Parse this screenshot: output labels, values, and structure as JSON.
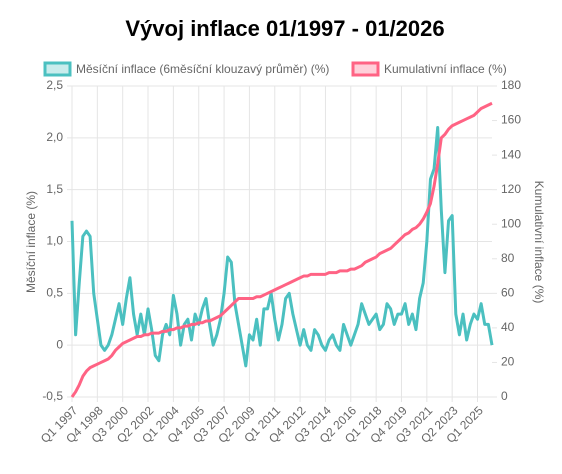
{
  "chart_data": {
    "type": "line",
    "title": "Vývoj inflace 01/1997 - 01/2026",
    "y_label": "Měsíční inflace (%)",
    "y2_label": "Kumulativní inflace (%)",
    "categories": [
      "Q1 1997",
      null,
      null,
      null,
      null,
      null,
      null,
      "Q4 1998",
      null,
      null,
      null,
      null,
      null,
      null,
      "Q3 2000",
      null,
      null,
      null,
      null,
      null,
      null,
      "Q2 2002",
      null,
      null,
      null,
      null,
      null,
      null,
      "Q1 2004",
      null,
      null,
      null,
      null,
      null,
      null,
      "Q4 2005",
      null,
      null,
      null,
      null,
      null,
      null,
      "Q3 2007",
      null,
      null,
      null,
      null,
      null,
      null,
      "Q2 2009",
      null,
      null,
      null,
      null,
      null,
      null,
      "Q1 2011",
      null,
      null,
      null,
      null,
      null,
      null,
      "Q4 2012",
      null,
      null,
      null,
      null,
      null,
      null,
      "Q3 2014",
      null,
      null,
      null,
      null,
      null,
      null,
      "Q2 2016",
      null,
      null,
      null,
      null,
      null,
      null,
      "Q1 2018",
      null,
      null,
      null,
      null,
      null,
      null,
      "Q4 2019",
      null,
      null,
      null,
      null,
      null,
      null,
      "Q3 2021",
      null,
      null,
      null,
      null,
      null,
      null,
      "Q2 2023",
      null,
      null,
      null,
      null,
      null,
      null,
      "Q1 2025",
      null,
      null,
      null,
      null
    ],
    "series": [
      {
        "name": "Měsíční inflace (6měsíční klouzavý průměr) (%)",
        "color": "#4bc0c0",
        "axis": "y",
        "values": [
          1.2,
          0.1,
          0.6,
          1.05,
          1.1,
          1.05,
          0.5,
          0.25,
          0.0,
          -0.05,
          0.0,
          0.1,
          0.25,
          0.4,
          0.2,
          0.45,
          0.65,
          0.3,
          0.1,
          0.3,
          0.1,
          0.35,
          0.15,
          -0.1,
          -0.15,
          0.1,
          0.2,
          0.1,
          0.48,
          0.3,
          0.0,
          0.2,
          0.25,
          0.05,
          0.3,
          0.2,
          0.35,
          0.45,
          0.2,
          0.0,
          0.1,
          0.25,
          0.5,
          0.85,
          0.8,
          0.4,
          0.2,
          0.0,
          -0.2,
          0.1,
          0.05,
          0.25,
          0.0,
          0.35,
          0.35,
          0.5,
          0.25,
          0.05,
          0.2,
          0.45,
          0.5,
          0.3,
          0.15,
          0.0,
          0.15,
          0.0,
          -0.05,
          0.15,
          0.1,
          0.0,
          -0.05,
          0.05,
          0.1,
          0.0,
          -0.05,
          0.2,
          0.1,
          0.0,
          0.1,
          0.2,
          0.4,
          0.3,
          0.2,
          0.25,
          0.3,
          0.15,
          0.2,
          0.4,
          0.35,
          0.2,
          0.3,
          0.3,
          0.4,
          0.2,
          0.3,
          0.15,
          0.45,
          0.6,
          1.0,
          1.6,
          1.7,
          2.1,
          1.3,
          0.7,
          1.2,
          1.25,
          0.3,
          0.1,
          0.3,
          0.05,
          0.2,
          0.3,
          0.25,
          0.4,
          0.2,
          0.2,
          0.0
        ]
      },
      {
        "name": "Kumulativní inflace (%)",
        "color": "#ff6384",
        "axis": "y2",
        "values": [
          0,
          3,
          7,
          12,
          15,
          17,
          18,
          19,
          20,
          21,
          22,
          24,
          27,
          29,
          31,
          32,
          33,
          34,
          35,
          35,
          36,
          36,
          37,
          37,
          37,
          38,
          38,
          39,
          39,
          40,
          40,
          41,
          41,
          42,
          42,
          43,
          43,
          44,
          44,
          45,
          46,
          47,
          49,
          51,
          53,
          55,
          57,
          57,
          57,
          57,
          57,
          58,
          58,
          59,
          60,
          61,
          62,
          63,
          64,
          65,
          66,
          67,
          68,
          69,
          70,
          70,
          71,
          71,
          71,
          71,
          71,
          72,
          72,
          72,
          73,
          73,
          73,
          74,
          74,
          75,
          76,
          78,
          79,
          80,
          81,
          83,
          84,
          85,
          86,
          88,
          90,
          92,
          94,
          95,
          97,
          98,
          100,
          103,
          107,
          112,
          122,
          135,
          150,
          152,
          155,
          157,
          158,
          159,
          160,
          161,
          162,
          163,
          165,
          167,
          168,
          169,
          170
        ]
      }
    ],
    "ylim": [
      -0.5,
      2.5
    ],
    "yticks": [
      {
        "value": -0.5,
        "label": "-0,5"
      },
      0,
      {
        "value": 0.5,
        "label": "0,5"
      },
      {
        "value": 1,
        "label": "1,0"
      },
      {
        "value": 1.5,
        "label": "1,5"
      },
      {
        "value": 2,
        "label": "2,0"
      },
      {
        "value": 2.5,
        "label": "2,5"
      }
    ],
    "y2lim": [
      0,
      180
    ],
    "y2ticks": [
      0,
      20,
      40,
      60,
      80,
      100,
      120,
      140,
      160,
      180
    ],
    "grid": true,
    "legend": "top"
  }
}
